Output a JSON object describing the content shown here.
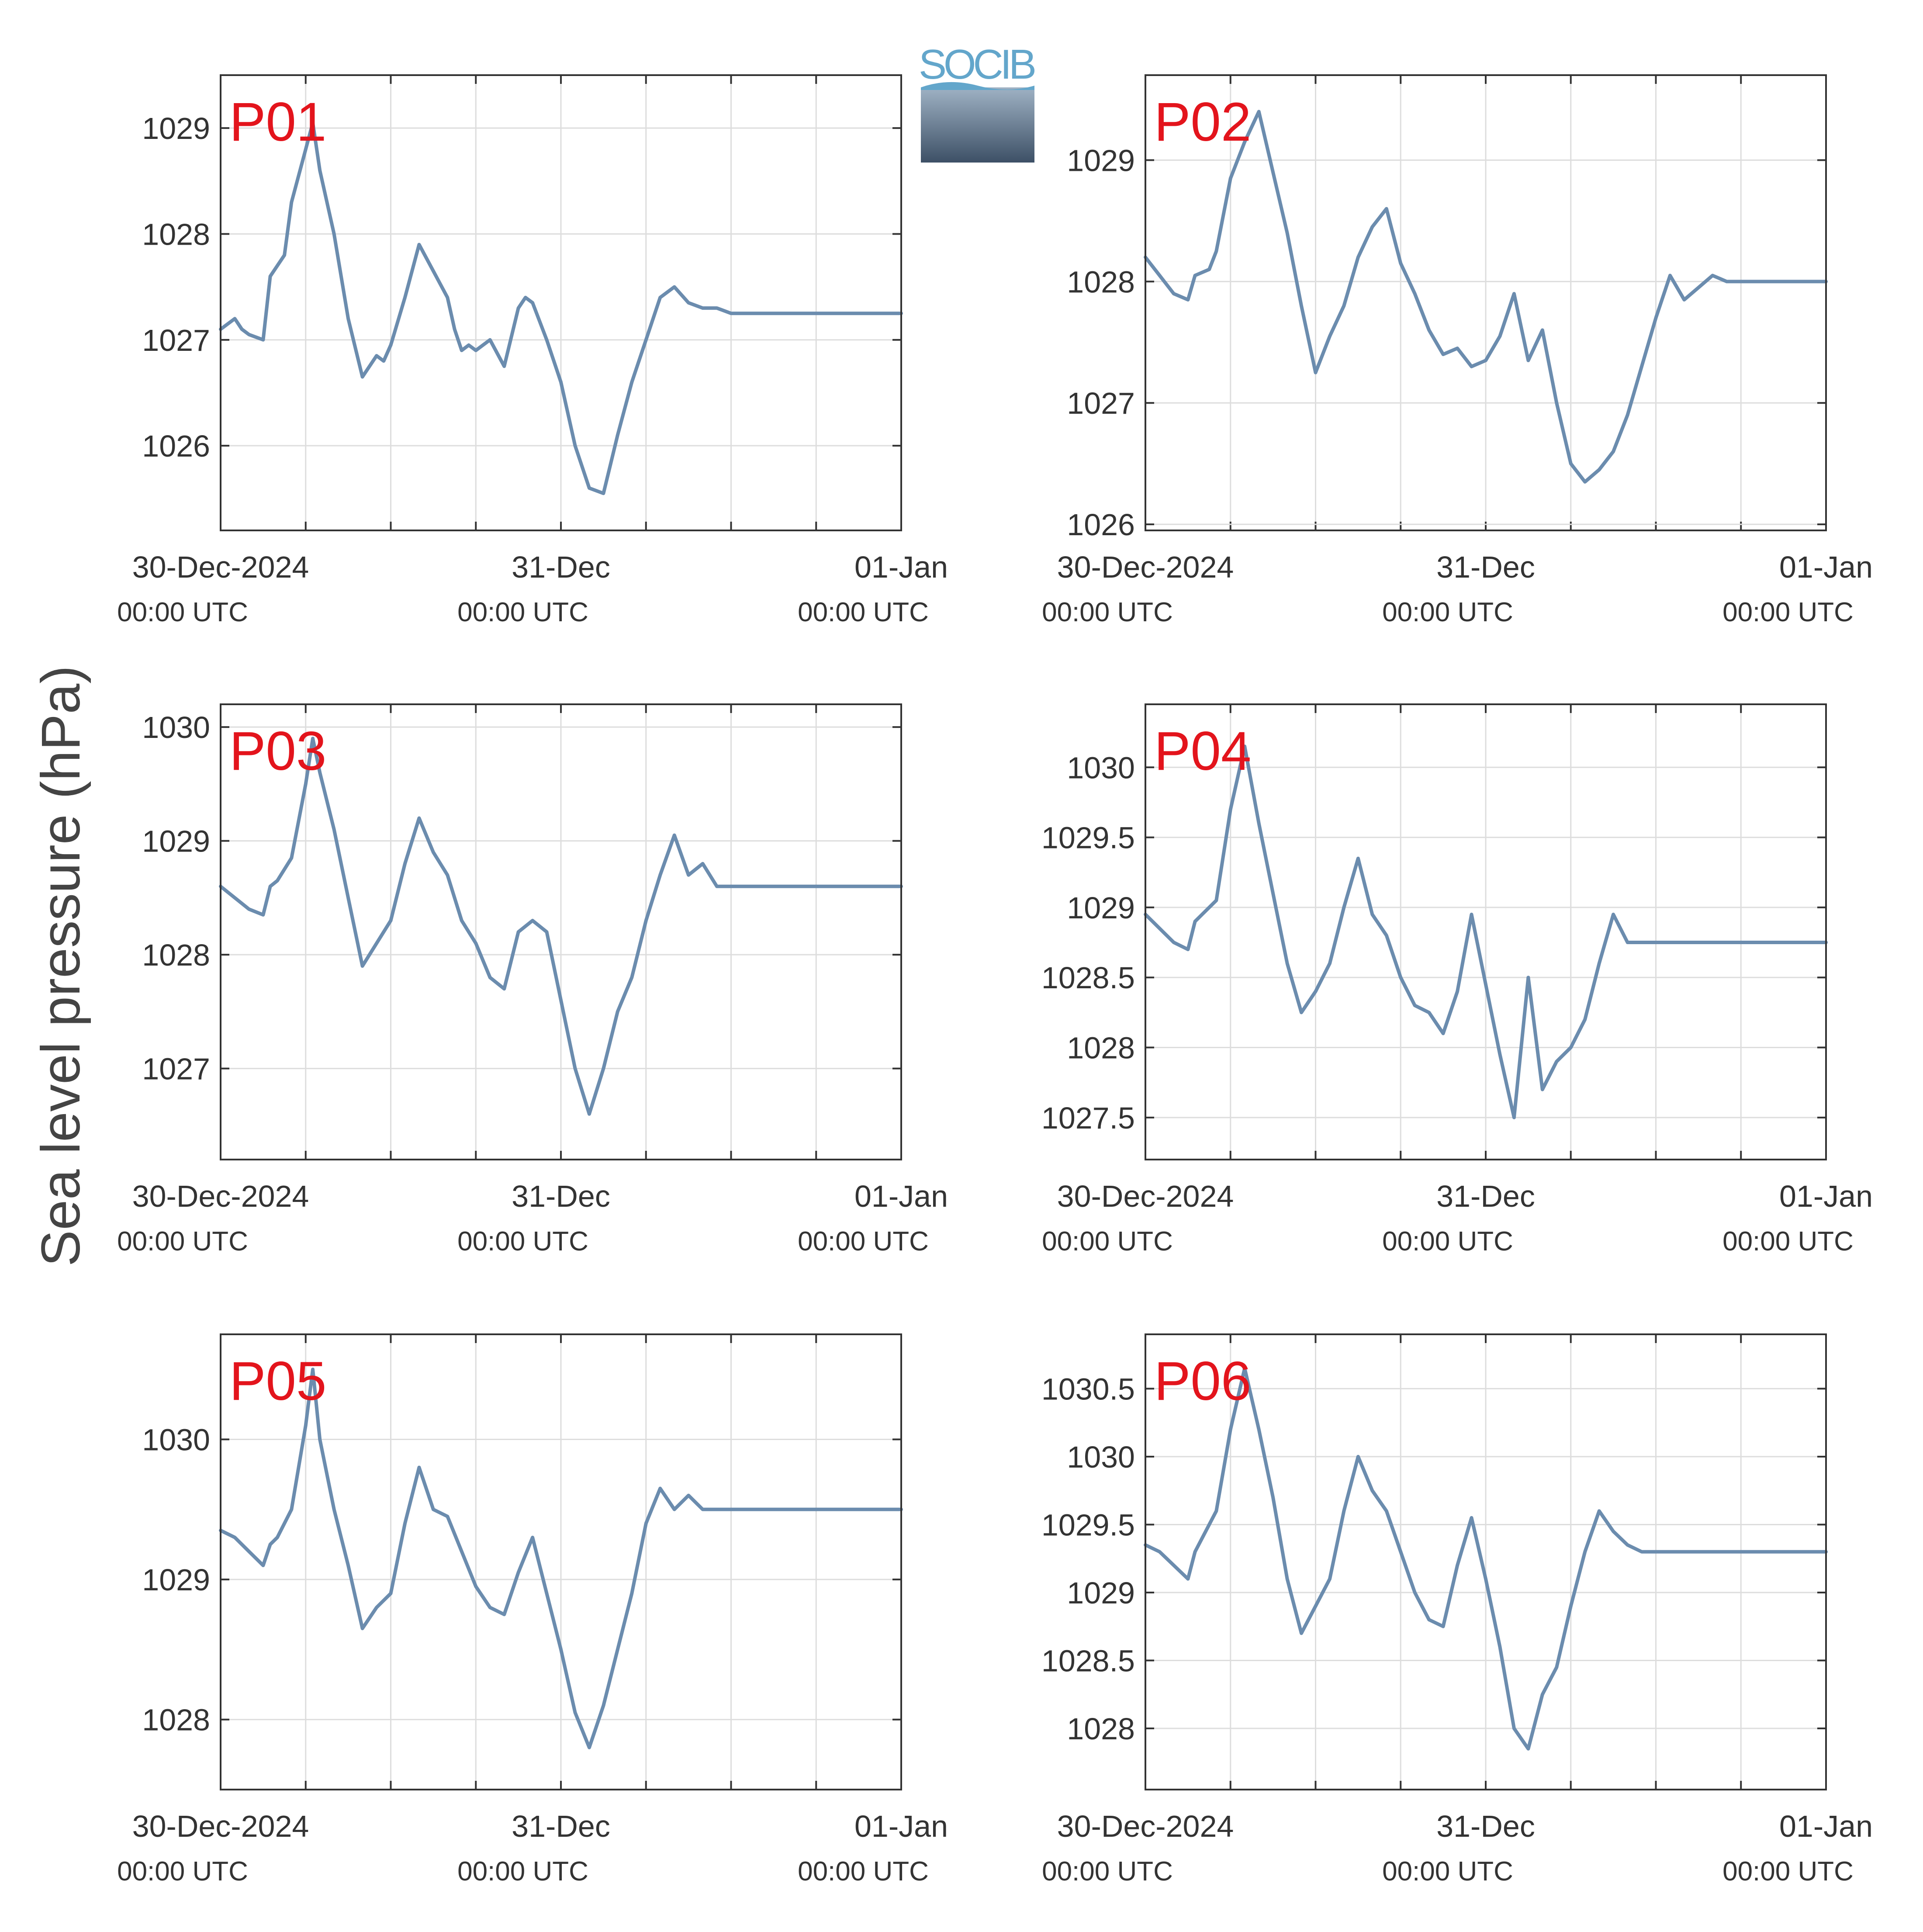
{
  "figure": {
    "ylabel": "Sea level pressure (hPa)",
    "logo_text": "SOCIB",
    "colors": {
      "line": "#6b8cae",
      "panel_label": "#e3141c",
      "grid": "#dddddd",
      "axes": "#333333"
    }
  },
  "chart_data": [
    {
      "type": "line",
      "panel_label": "P01",
      "x_ticks": [
        {
          "x": 0,
          "label": "30-Dec-2024",
          "sub": "00:00 UTC"
        },
        {
          "x": 24,
          "label": "31-Dec",
          "sub": "00:00 UTC"
        },
        {
          "x": 48,
          "label": "01-Jan",
          "sub": "00:00 UTC"
        }
      ],
      "xlim": [
        0,
        48
      ],
      "ylim": [
        1025.2,
        1029.5
      ],
      "yticks": [
        1026,
        1027,
        1028,
        1029
      ],
      "ytick_labels": [
        "1026",
        "1027",
        "1028",
        "1029"
      ],
      "grid": true,
      "series": [
        {
          "x": [
            0,
            1,
            1.5,
            2,
            3,
            3.5,
            4.5,
            5,
            6,
            6.5,
            7,
            8,
            9,
            10,
            11,
            11.5,
            12,
            13,
            14,
            15,
            16,
            16.5,
            17,
            17.5,
            18,
            19,
            20,
            21,
            21.5,
            22,
            23,
            24,
            25,
            26,
            27,
            28,
            29,
            30,
            31,
            32,
            33,
            34,
            35,
            36,
            37,
            38,
            39,
            40,
            41,
            42,
            43,
            44,
            45,
            46,
            47,
            48
          ],
          "y": [
            1027.1,
            1027.2,
            1027.1,
            1027.05,
            1027.0,
            1027.6,
            1027.8,
            1028.3,
            1028.8,
            1029.05,
            1028.6,
            1028.0,
            1027.2,
            1026.65,
            1026.85,
            1026.8,
            1026.95,
            1027.4,
            1027.9,
            1027.65,
            1027.4,
            1027.1,
            1026.9,
            1026.95,
            1026.9,
            1027.0,
            1026.75,
            1027.3,
            1027.4,
            1027.35,
            1027.0,
            1026.6,
            1026.0,
            1025.6,
            1025.55,
            1026.1,
            1026.6,
            1027.0,
            1027.4,
            1027.5,
            1027.35,
            1027.3,
            1027.3,
            1027.25,
            1027.25,
            1027.25,
            1027.25,
            1027.25,
            1027.25,
            1027.25,
            1027.25,
            1027.25,
            1027.25,
            1027.25,
            1027.25,
            1027.25
          ]
        }
      ]
    },
    {
      "type": "line",
      "panel_label": "P02",
      "x_ticks": [
        {
          "x": 0,
          "label": "30-Dec-2024",
          "sub": "00:00 UTC"
        },
        {
          "x": 24,
          "label": "31-Dec",
          "sub": "00:00 UTC"
        },
        {
          "x": 48,
          "label": "01-Jan",
          "sub": "00:00 UTC"
        }
      ],
      "xlim": [
        0,
        48
      ],
      "ylim": [
        1025.95,
        1029.7
      ],
      "yticks": [
        1026,
        1027,
        1028,
        1029
      ],
      "ytick_labels": [
        "1026",
        "1027",
        "1028",
        "1029"
      ],
      "grid": true,
      "series": [
        {
          "x": [
            0,
            1,
            2,
            3,
            3.5,
            4.5,
            5,
            6,
            7,
            8,
            9,
            10,
            11,
            12,
            13,
            14,
            15,
            16,
            17,
            18,
            19,
            20,
            21,
            22,
            23,
            24,
            25,
            26,
            27,
            28,
            29,
            30,
            31,
            32,
            33,
            34,
            35,
            36,
            37,
            38,
            39,
            40,
            41,
            42,
            43,
            44,
            45,
            46,
            47,
            48
          ],
          "y": [
            1028.2,
            1028.05,
            1027.9,
            1027.85,
            1028.05,
            1028.1,
            1028.25,
            1028.85,
            1029.15,
            1029.4,
            1028.9,
            1028.4,
            1027.8,
            1027.25,
            1027.55,
            1027.8,
            1028.2,
            1028.45,
            1028.6,
            1028.15,
            1027.9,
            1027.6,
            1027.4,
            1027.45,
            1027.3,
            1027.35,
            1027.55,
            1027.9,
            1027.35,
            1027.6,
            1027.0,
            1026.5,
            1026.35,
            1026.45,
            1026.6,
            1026.9,
            1027.3,
            1027.7,
            1028.05,
            1027.85,
            1027.95,
            1028.05,
            1028.0,
            1028.0,
            1028.0,
            1028.0,
            1028.0,
            1028.0,
            1028.0,
            1028.0
          ]
        }
      ]
    },
    {
      "type": "line",
      "panel_label": "P03",
      "x_ticks": [
        {
          "x": 0,
          "label": "30-Dec-2024",
          "sub": "00:00 UTC"
        },
        {
          "x": 24,
          "label": "31-Dec",
          "sub": "00:00 UTC"
        },
        {
          "x": 48,
          "label": "01-Jan",
          "sub": "00:00 UTC"
        }
      ],
      "xlim": [
        0,
        48
      ],
      "ylim": [
        1026.2,
        1030.2
      ],
      "yticks": [
        1027,
        1028,
        1029,
        1030
      ],
      "ytick_labels": [
        "1027",
        "1028",
        "1029",
        "1030"
      ],
      "grid": true,
      "series": [
        {
          "x": [
            0,
            1,
            2,
            3,
            3.5,
            4,
            5,
            6,
            6.5,
            7,
            8,
            9,
            10,
            11,
            12,
            13,
            14,
            15,
            16,
            17,
            18,
            19,
            20,
            21,
            22,
            23,
            24,
            25,
            26,
            27,
            28,
            29,
            30,
            31,
            32,
            33,
            34,
            35,
            36,
            37,
            38,
            39,
            40,
            41,
            42,
            43,
            44,
            45,
            46,
            47,
            48
          ],
          "y": [
            1028.6,
            1028.5,
            1028.4,
            1028.35,
            1028.6,
            1028.65,
            1028.85,
            1029.5,
            1029.9,
            1029.6,
            1029.1,
            1028.5,
            1027.9,
            1028.1,
            1028.3,
            1028.8,
            1029.2,
            1028.9,
            1028.7,
            1028.3,
            1028.1,
            1027.8,
            1027.7,
            1028.2,
            1028.3,
            1028.2,
            1027.6,
            1027.0,
            1026.6,
            1027.0,
            1027.5,
            1027.8,
            1028.3,
            1028.7,
            1029.05,
            1028.7,
            1028.8,
            1028.6,
            1028.6,
            1028.6,
            1028.6,
            1028.6,
            1028.6,
            1028.6,
            1028.6,
            1028.6,
            1028.6,
            1028.6,
            1028.6,
            1028.6,
            1028.6
          ]
        }
      ]
    },
    {
      "type": "line",
      "panel_label": "P04",
      "x_ticks": [
        {
          "x": 0,
          "label": "30-Dec-2024",
          "sub": "00:00 UTC"
        },
        {
          "x": 24,
          "label": "31-Dec",
          "sub": "00:00 UTC"
        },
        {
          "x": 48,
          "label": "01-Jan",
          "sub": "00:00 UTC"
        }
      ],
      "xlim": [
        0,
        48
      ],
      "ylim": [
        1027.2,
        1030.45
      ],
      "yticks": [
        1027.5,
        1028,
        1028.5,
        1029,
        1029.5,
        1030
      ],
      "ytick_labels": [
        "1027.5",
        "1028",
        "1028.5",
        "1029",
        "1029.5",
        "1030"
      ],
      "grid": true,
      "series": [
        {
          "x": [
            0,
            1,
            2,
            3,
            3.5,
            4,
            5,
            6,
            7,
            8,
            9,
            10,
            11,
            12,
            13,
            14,
            15,
            16,
            17,
            18,
            19,
            20,
            21,
            22,
            23,
            24,
            25,
            26,
            27,
            28,
            29,
            30,
            31,
            32,
            33,
            34,
            35,
            36,
            37,
            38,
            39,
            40,
            41,
            42,
            43,
            44,
            45,
            46,
            47,
            48
          ],
          "y": [
            1028.95,
            1028.85,
            1028.75,
            1028.7,
            1028.9,
            1028.95,
            1029.05,
            1029.7,
            1030.15,
            1029.6,
            1029.1,
            1028.6,
            1028.25,
            1028.4,
            1028.6,
            1029.0,
            1029.35,
            1028.95,
            1028.8,
            1028.5,
            1028.3,
            1028.25,
            1028.1,
            1028.4,
            1028.95,
            1028.45,
            1027.95,
            1027.5,
            1028.5,
            1027.7,
            1027.9,
            1028.0,
            1028.2,
            1028.6,
            1028.95,
            1028.75,
            1028.75,
            1028.75,
            1028.75,
            1028.75,
            1028.75,
            1028.75,
            1028.75,
            1028.75,
            1028.75,
            1028.75,
            1028.75,
            1028.75,
            1028.75,
            1028.75
          ]
        }
      ]
    },
    {
      "type": "line",
      "panel_label": "P05",
      "x_ticks": [
        {
          "x": 0,
          "label": "30-Dec-2024",
          "sub": "00:00 UTC"
        },
        {
          "x": 24,
          "label": "31-Dec",
          "sub": "00:00 UTC"
        },
        {
          "x": 48,
          "label": "01-Jan",
          "sub": "00:00 UTC"
        }
      ],
      "xlim": [
        0,
        48
      ],
      "ylim": [
        1027.5,
        1030.75
      ],
      "yticks": [
        1028,
        1029,
        1030
      ],
      "ytick_labels": [
        "1028",
        "1029",
        "1030"
      ],
      "grid": true,
      "series": [
        {
          "x": [
            0,
            1,
            2,
            3,
            3.5,
            4,
            5,
            6,
            6.5,
            7,
            8,
            9,
            10,
            11,
            12,
            13,
            14,
            15,
            16,
            17,
            18,
            19,
            20,
            21,
            22,
            23,
            24,
            25,
            26,
            27,
            28,
            29,
            30,
            31,
            32,
            33,
            34,
            35,
            36,
            37,
            38,
            39,
            40,
            41,
            42,
            43,
            44,
            45,
            46,
            47,
            48
          ],
          "y": [
            1029.35,
            1029.3,
            1029.2,
            1029.1,
            1029.25,
            1029.3,
            1029.5,
            1030.1,
            1030.5,
            1030.0,
            1029.5,
            1029.1,
            1028.65,
            1028.8,
            1028.9,
            1029.4,
            1029.8,
            1029.5,
            1029.45,
            1029.2,
            1028.95,
            1028.8,
            1028.75,
            1029.05,
            1029.3,
            1028.9,
            1028.5,
            1028.05,
            1027.8,
            1028.1,
            1028.5,
            1028.9,
            1029.4,
            1029.65,
            1029.5,
            1029.6,
            1029.5,
            1029.5,
            1029.5,
            1029.5,
            1029.5,
            1029.5,
            1029.5,
            1029.5,
            1029.5,
            1029.5,
            1029.5,
            1029.5,
            1029.5,
            1029.5,
            1029.5
          ]
        }
      ]
    },
    {
      "type": "line",
      "panel_label": "P06",
      "x_ticks": [
        {
          "x": 0,
          "label": "30-Dec-2024",
          "sub": "00:00 UTC"
        },
        {
          "x": 24,
          "label": "31-Dec",
          "sub": "00:00 UTC"
        },
        {
          "x": 48,
          "label": "01-Jan",
          "sub": "00:00 UTC"
        }
      ],
      "xlim": [
        0,
        48
      ],
      "ylim": [
        1027.55,
        1030.9
      ],
      "yticks": [
        1028,
        1028.5,
        1029,
        1029.5,
        1030,
        1030.5
      ],
      "ytick_labels": [
        "1028",
        "1028.5",
        "1029",
        "1029.5",
        "1030",
        "1030.5"
      ],
      "grid": true,
      "series": [
        {
          "x": [
            0,
            1,
            2,
            3,
            3.5,
            4,
            5,
            6,
            7,
            8,
            9,
            10,
            11,
            12,
            13,
            14,
            15,
            16,
            17,
            18,
            19,
            20,
            21,
            22,
            23,
            24,
            25,
            26,
            27,
            28,
            29,
            30,
            31,
            32,
            33,
            34,
            35,
            36,
            37,
            38,
            39,
            40,
            41,
            42,
            43,
            44,
            45,
            46,
            47,
            48
          ],
          "y": [
            1029.35,
            1029.3,
            1029.2,
            1029.1,
            1029.3,
            1029.4,
            1029.6,
            1030.2,
            1030.65,
            1030.2,
            1029.7,
            1029.1,
            1028.7,
            1028.9,
            1029.1,
            1029.6,
            1030.0,
            1029.75,
            1029.6,
            1029.3,
            1029.0,
            1028.8,
            1028.75,
            1029.2,
            1029.55,
            1029.1,
            1028.6,
            1028.0,
            1027.85,
            1028.25,
            1028.45,
            1028.9,
            1029.3,
            1029.6,
            1029.45,
            1029.35,
            1029.3,
            1029.3,
            1029.3,
            1029.3,
            1029.3,
            1029.3,
            1029.3,
            1029.3,
            1029.3,
            1029.3,
            1029.3,
            1029.3,
            1029.3,
            1029.3
          ]
        }
      ]
    }
  ]
}
